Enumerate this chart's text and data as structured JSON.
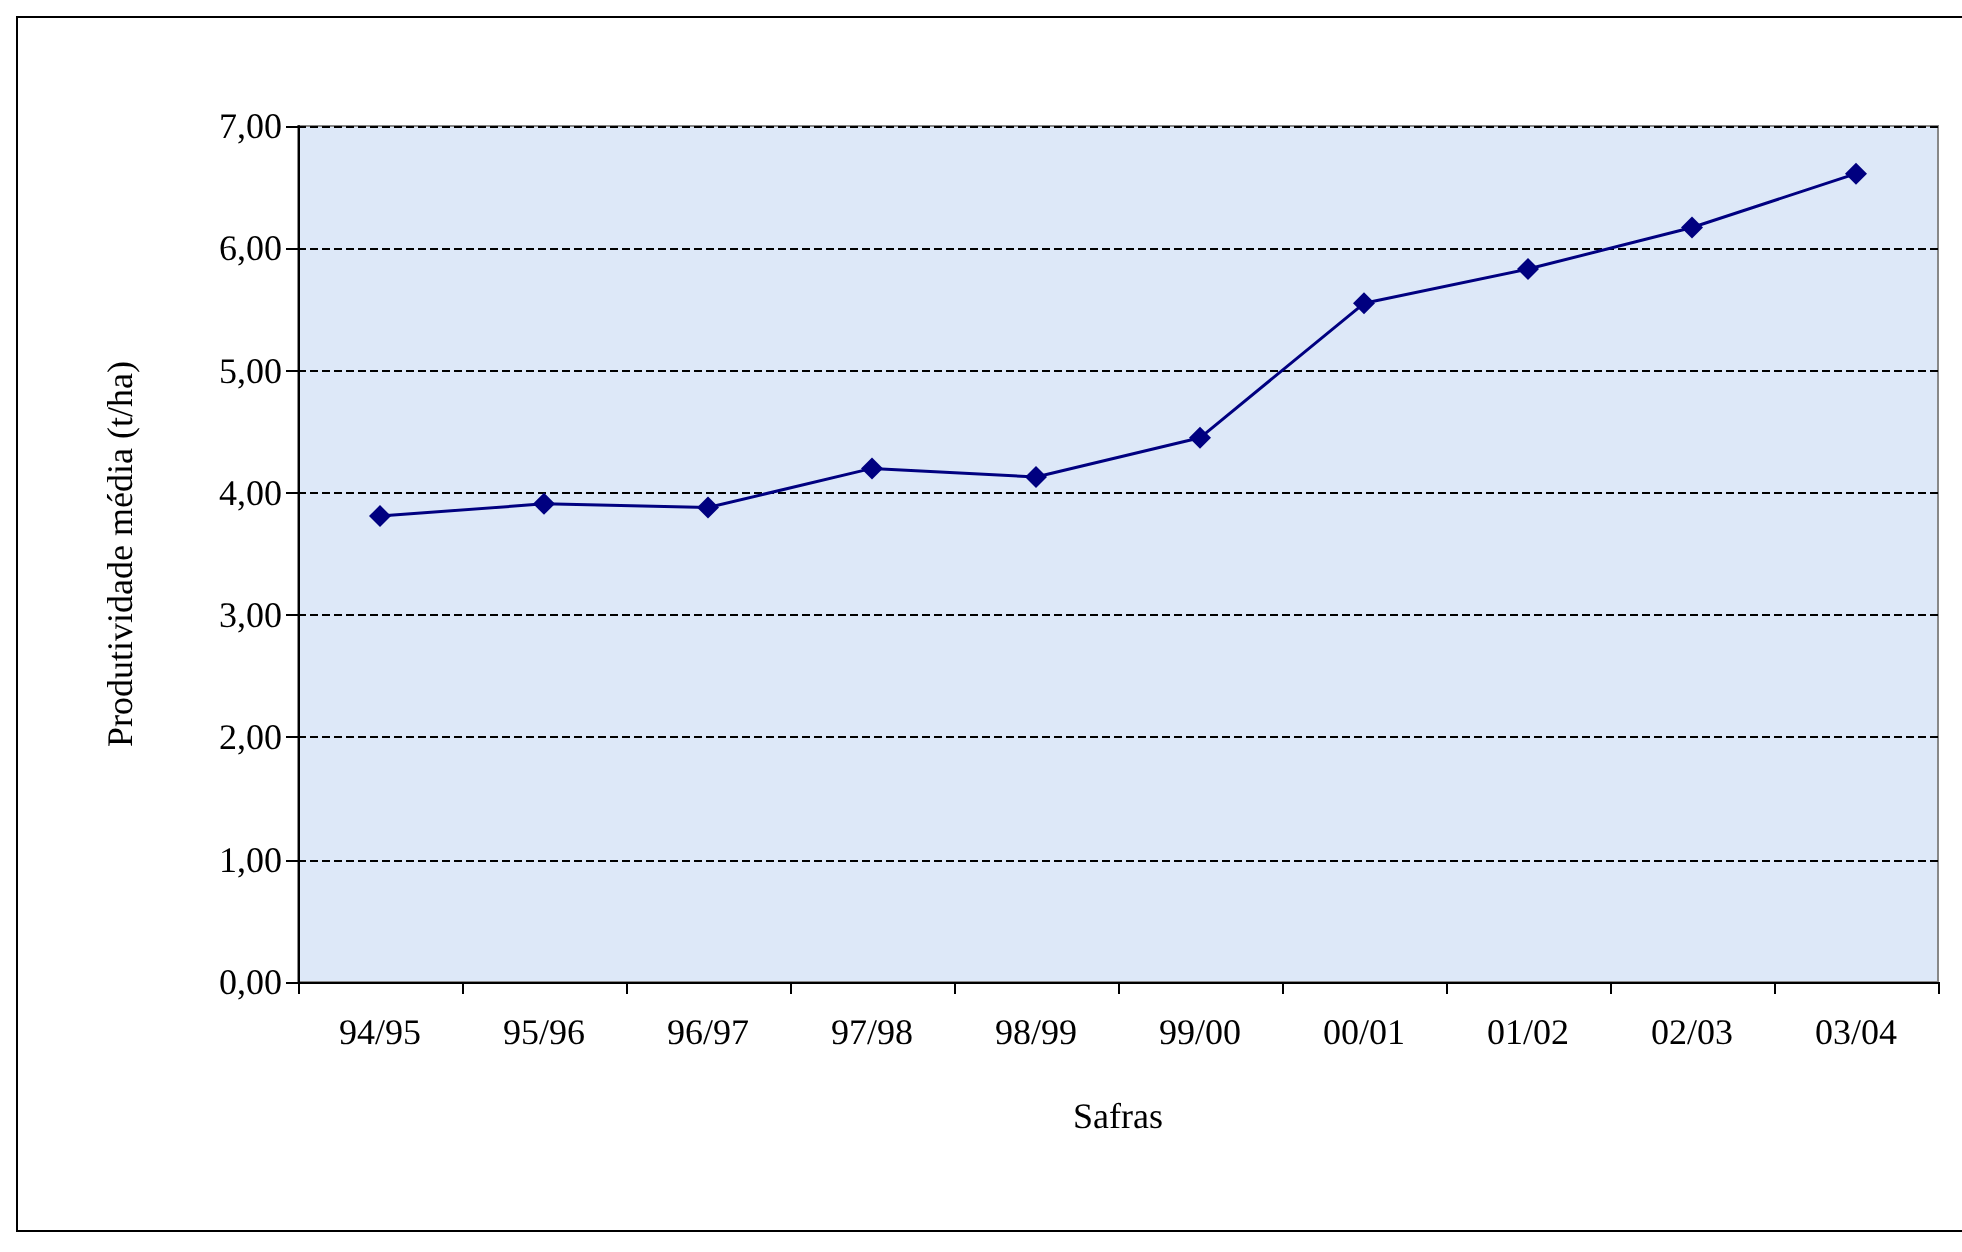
{
  "chart_data": {
    "type": "line",
    "xlabel": "Safras",
    "ylabel": "Produtividade média (t/ha)",
    "categories": [
      "94/95",
      "95/96",
      "96/97",
      "97/98",
      "98/99",
      "99/00",
      "00/01",
      "01/02",
      "02/03",
      "03/04"
    ],
    "series": [
      {
        "color": "#000080",
        "values": [
          3.81,
          3.91,
          3.88,
          4.2,
          4.13,
          4.45,
          5.55,
          5.83,
          6.17,
          6.61
        ]
      }
    ],
    "ylim": [
      0,
      7
    ],
    "yticks": [
      {
        "value": 0,
        "label": "0,00"
      },
      {
        "value": 1,
        "label": "1,00"
      },
      {
        "value": 2,
        "label": "2,00"
      },
      {
        "value": 3,
        "label": "3,00"
      },
      {
        "value": 4,
        "label": "4,00"
      },
      {
        "value": 5,
        "label": "5,00"
      },
      {
        "value": 6,
        "label": "6,00"
      },
      {
        "value": 7,
        "label": "7,00"
      }
    ],
    "grid": "y",
    "marker": "diamond",
    "line_style": "solid"
  }
}
